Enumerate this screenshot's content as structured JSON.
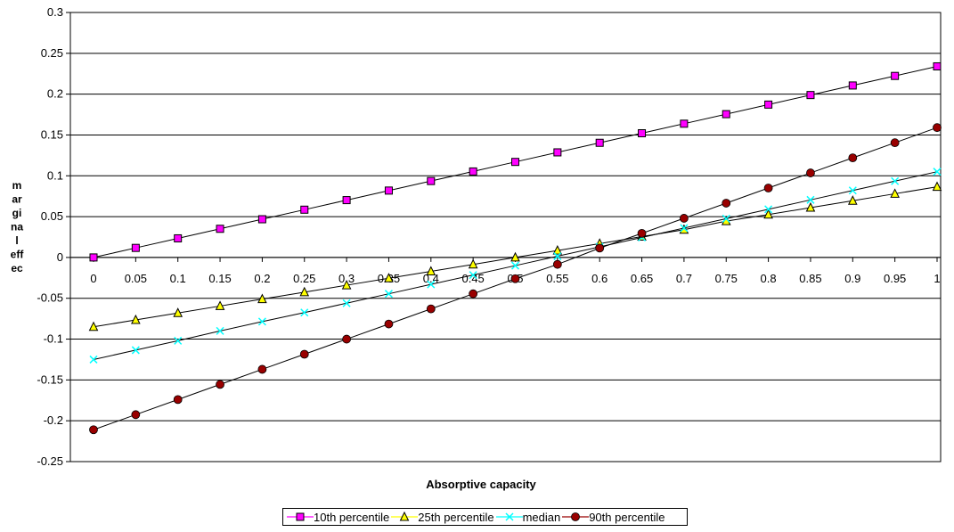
{
  "chart_data": {
    "type": "line",
    "xlabel": "Absorptive capacity",
    "ylabel": "marginal effec",
    "ylabel_lines": [
      "m",
      "ar",
      "gi",
      "na",
      "l",
      "eff",
      "ec"
    ],
    "x": [
      0,
      0.05,
      0.1,
      0.15,
      0.2,
      0.25,
      0.3,
      0.35,
      0.4,
      0.45,
      0.5,
      0.55,
      0.6,
      0.65,
      0.7,
      0.75,
      0.8,
      0.85,
      0.9,
      0.95,
      1
    ],
    "x_tick_labels": [
      "0",
      "0.05",
      "0.1",
      "0.15",
      "0.2",
      "0.25",
      "0.3",
      "0.35",
      "0.4",
      "0.45",
      "0.5",
      "0.55",
      "0.6",
      "0.65",
      "0.7",
      "0.75",
      "0.8",
      "0.85",
      "0.9",
      "0.95",
      "1"
    ],
    "ylim": [
      -0.25,
      0.3
    ],
    "y_ticks": [
      -0.25,
      -0.2,
      -0.15,
      -0.1,
      -0.05,
      0,
      0.05,
      0.1,
      0.15,
      0.2,
      0.25,
      0.3
    ],
    "y_tick_labels": [
      "-0.25",
      "-0.2",
      "-0.15",
      "-0.1",
      "-0.05",
      "0",
      "0.05",
      "0.1",
      "0.15",
      "0.2",
      "0.25",
      "0.3"
    ],
    "grid": "horizontal",
    "legend_position": "bottom",
    "series": [
      {
        "name": "10th percentile",
        "color": "#ff00ff",
        "marker": "square",
        "values": [
          0,
          0.0117,
          0.0234,
          0.0351,
          0.0468,
          0.0585,
          0.0702,
          0.0819,
          0.0936,
          0.1053,
          0.117,
          0.1287,
          0.1404,
          0.1521,
          0.1638,
          0.1755,
          0.1872,
          0.1989,
          0.2106,
          0.2223,
          0.234
        ]
      },
      {
        "name": "25th percentile",
        "color": "#ffff00",
        "marker": "triangle",
        "values": [
          -0.085,
          -0.0765,
          -0.068,
          -0.0595,
          -0.051,
          -0.0425,
          -0.034,
          -0.0255,
          -0.017,
          -0.0085,
          0,
          0.0085,
          0.017,
          0.0255,
          0.034,
          0.0445,
          0.0525,
          0.061,
          0.0695,
          0.078,
          0.0865
        ]
      },
      {
        "name": "median",
        "color": "#00ffff",
        "marker": "x",
        "values": [
          -0.125,
          -0.1135,
          -0.102,
          -0.09,
          -0.0785,
          -0.0675,
          -0.056,
          -0.0445,
          -0.033,
          -0.0215,
          -0.01,
          0.0015,
          0.013,
          0.0245,
          0.036,
          0.0475,
          0.059,
          0.0705,
          0.082,
          0.0935,
          0.105
        ]
      },
      {
        "name": "90th percentile",
        "color": "#990000",
        "marker": "circle",
        "values": [
          -0.211,
          -0.1925,
          -0.174,
          -0.1555,
          -0.137,
          -0.1185,
          -0.1,
          -0.0815,
          -0.063,
          -0.0445,
          -0.026,
          -0.0085,
          0.0115,
          0.0295,
          0.048,
          0.0665,
          0.085,
          0.1035,
          0.122,
          0.1405,
          0.159
        ]
      }
    ]
  }
}
